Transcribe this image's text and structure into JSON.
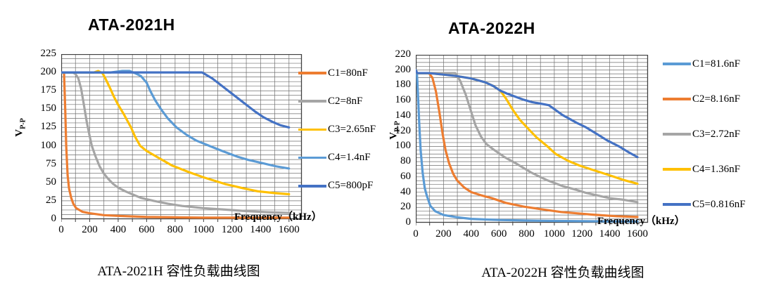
{
  "colors": {
    "orange": "#ED7D31",
    "gray": "#A5A5A5",
    "yellow": "#FFC000",
    "light_blue": "#5B9BD5",
    "dark_blue": "#4472C4",
    "grid": "#6F6F6F",
    "border": "#404040",
    "text": "#000000"
  },
  "charts": [
    {
      "title": "ATA-2021H",
      "caption": "ATA-2021H 容性负载曲线图",
      "y_label_main": "V",
      "y_label_sub": "P-P",
      "x_axis_label": "Frequency（kHz）",
      "chart_data": {
        "type": "line",
        "xlabel": "Frequency (kHz)",
        "ylabel": "Vp-p",
        "xlim": [
          0,
          1690
        ],
        "ylim": [
          0,
          225
        ],
        "x_tick_step": 200,
        "x_tick_max": 1600,
        "y_tick_step": 25,
        "x_minor_step": 100,
        "y_minor_step": 6.25,
        "grid": true,
        "legend_position": "right",
        "series": [
          {
            "name": "C1=80nF",
            "color": "#ED7D31",
            "points": [
              [
                0,
                200
              ],
              [
                20,
                200
              ],
              [
                28,
                150
              ],
              [
                35,
                100
              ],
              [
                45,
                60
              ],
              [
                55,
                42
              ],
              [
                70,
                29
              ],
              [
                85,
                21
              ],
              [
                105,
                15
              ],
              [
                150,
                10
              ],
              [
                200,
                8
              ],
              [
                300,
                5.5
              ],
              [
                400,
                4.5
              ],
              [
                600,
                3
              ],
              [
                800,
                2.5
              ],
              [
                1000,
                2
              ],
              [
                1300,
                2
              ],
              [
                1600,
                2
              ]
            ]
          },
          {
            "name": "C2=8nF",
            "color": "#A5A5A5",
            "points": [
              [
                0,
                200
              ],
              [
                80,
                200
              ],
              [
                100,
                198
              ],
              [
                120,
                192
              ],
              [
                140,
                178
              ],
              [
                160,
                155
              ],
              [
                180,
                132
              ],
              [
                200,
                113
              ],
              [
                215,
                100
              ],
              [
                240,
                86
              ],
              [
                270,
                72
              ],
              [
                300,
                62
              ],
              [
                330,
                55
              ],
              [
                365,
                48
              ],
              [
                400,
                43
              ],
              [
                450,
                38
              ],
              [
                510,
                33
              ],
              [
                560,
                29
              ],
              [
                650,
                25
              ],
              [
                750,
                21
              ],
              [
                850,
                18
              ],
              [
                1000,
                15
              ],
              [
                1150,
                13
              ],
              [
                1300,
                11
              ],
              [
                1450,
                9.5
              ],
              [
                1600,
                8.5
              ]
            ]
          },
          {
            "name": "C3=2.65nF",
            "color": "#FFC000",
            "points": [
              [
                0,
                200
              ],
              [
                230,
                200
              ],
              [
                260,
                202
              ],
              [
                290,
                199
              ],
              [
                310,
                192
              ],
              [
                340,
                180
              ],
              [
                370,
                167
              ],
              [
                400,
                156
              ],
              [
                440,
                143
              ],
              [
                490,
                125
              ],
              [
                520,
                112
              ],
              [
                555,
                100
              ],
              [
                600,
                93
              ],
              [
                680,
                84
              ],
              [
                780,
                73
              ],
              [
                900,
                64
              ],
              [
                1000,
                57
              ],
              [
                1150,
                48
              ],
              [
                1280,
                42
              ],
              [
                1380,
                38
              ],
              [
                1500,
                35.5
              ],
              [
                1600,
                34
              ]
            ]
          },
          {
            "name": "C4=1.4nF",
            "color": "#5B9BD5",
            "points": [
              [
                0,
                200
              ],
              [
                350,
                200
              ],
              [
                430,
                202
              ],
              [
                480,
                202
              ],
              [
                520,
                199
              ],
              [
                560,
                195
              ],
              [
                600,
                186
              ],
              [
                625,
                175
              ],
              [
                660,
                162
              ],
              [
                700,
                150
              ],
              [
                750,
                137
              ],
              [
                810,
                125
              ],
              [
                880,
                115
              ],
              [
                950,
                107
              ],
              [
                1040,
                100
              ],
              [
                1130,
                93
              ],
              [
                1240,
                85
              ],
              [
                1310,
                81
              ],
              [
                1420,
                76
              ],
              [
                1510,
                72
              ],
              [
                1600,
                69
              ]
            ]
          },
          {
            "name": "C5=800pF",
            "color": "#4472C4",
            "points": [
              [
                0,
                200
              ],
              [
                990,
                200
              ],
              [
                1060,
                192
              ],
              [
                1120,
                183
              ],
              [
                1180,
                174
              ],
              [
                1240,
                165
              ],
              [
                1300,
                156
              ],
              [
                1360,
                147
              ],
              [
                1420,
                139
              ],
              [
                1480,
                133
              ],
              [
                1540,
                128
              ],
              [
                1600,
                125
              ]
            ]
          }
        ]
      }
    },
    {
      "title": "ATA-2022H",
      "caption": "ATA-2022H 容性负载曲线图",
      "y_label_main": "V",
      "y_label_sub": "P-P",
      "x_axis_label": "Frequency（kHz）",
      "chart_data": {
        "type": "line",
        "xlabel": "Frequency (kHz)",
        "ylabel": "Vp-p",
        "xlim": [
          0,
          1676
        ],
        "ylim": [
          0,
          220
        ],
        "x_tick_step": 200,
        "x_tick_max": 1600,
        "y_tick_step": 20,
        "x_minor_step": 100,
        "y_minor_step": 5,
        "grid": true,
        "legend_position": "right",
        "series": [
          {
            "name": "C1=81.6nF",
            "color": "#5B9BD5",
            "points": [
              [
                0,
                200
              ],
              [
                8,
                196
              ],
              [
                15,
                170
              ],
              [
                25,
                130
              ],
              [
                35,
                95
              ],
              [
                50,
                65
              ],
              [
                65,
                45
              ],
              [
                80,
                35
              ],
              [
                105,
                22
              ],
              [
                140,
                15
              ],
              [
                200,
                10
              ],
              [
                300,
                7
              ],
              [
                400,
                5
              ],
              [
                600,
                3.5
              ],
              [
                800,
                2.8
              ],
              [
                1000,
                2.3
              ],
              [
                1300,
                1.8
              ],
              [
                1600,
                1.5
              ]
            ]
          },
          {
            "name": "C2=8.16nF",
            "color": "#ED7D31",
            "points": [
              [
                0,
                200
              ],
              [
                10,
                196
              ],
              [
                95,
                196
              ],
              [
                120,
                190
              ],
              [
                145,
                172
              ],
              [
                170,
                145
              ],
              [
                195,
                115
              ],
              [
                215,
                95
              ],
              [
                240,
                78
              ],
              [
                270,
                64
              ],
              [
                300,
                55
              ],
              [
                350,
                46
              ],
              [
                400,
                40
              ],
              [
                470,
                36
              ],
              [
                550,
                32
              ],
              [
                650,
                26
              ],
              [
                780,
                21
              ],
              [
                890,
                18
              ],
              [
                1050,
                14
              ],
              [
                1280,
                10.5
              ],
              [
                1450,
                8.5
              ],
              [
                1600,
                7.5
              ]
            ]
          },
          {
            "name": "C3=2.72nF",
            "color": "#A5A5A5",
            "points": [
              [
                0,
                200
              ],
              [
                10,
                196
              ],
              [
                285,
                196
              ],
              [
                320,
                186
              ],
              [
                360,
                168
              ],
              [
                395,
                148
              ],
              [
                430,
                128
              ],
              [
                470,
                113
              ],
              [
                510,
                103
              ],
              [
                560,
                96
              ],
              [
                640,
                86
              ],
              [
                720,
                78
              ],
              [
                830,
                66
              ],
              [
                944,
                56
              ],
              [
                1060,
                48
              ],
              [
                1160,
                43
              ],
              [
                1230,
                39
              ],
              [
                1400,
                32
              ],
              [
                1500,
                30
              ],
              [
                1600,
                27
              ]
            ]
          },
          {
            "name": "C4=1.36nF",
            "color": "#FFC000",
            "points": [
              [
                0,
                200
              ],
              [
                10,
                196
              ],
              [
                100,
                196
              ],
              [
                200,
                194
              ],
              [
                300,
                192
              ],
              [
                400,
                189
              ],
              [
                500,
                184
              ],
              [
                560,
                179
              ],
              [
                610,
                173
              ],
              [
                650,
                163
              ],
              [
                700,
                148
              ],
              [
                750,
                135
              ],
              [
                807,
                124
              ],
              [
                870,
                112
              ],
              [
                950,
                100
              ],
              [
                1010,
                90
              ],
              [
                1100,
                81
              ],
              [
                1180,
                75
              ],
              [
                1280,
                69
              ],
              [
                1400,
                62
              ],
              [
                1500,
                56
              ],
              [
                1600,
                51
              ]
            ]
          },
          {
            "name": "C5=0.816nF",
            "color": "#4472C4",
            "points": [
              [
                0,
                200
              ],
              [
                10,
                196
              ],
              [
                100,
                196
              ],
              [
                200,
                194
              ],
              [
                300,
                192
              ],
              [
                400,
                189
              ],
              [
                500,
                184
              ],
              [
                560,
                179
              ],
              [
                610,
                173
              ],
              [
                660,
                169
              ],
              [
                720,
                165
              ],
              [
                780,
                161
              ],
              [
                840,
                158
              ],
              [
                900,
                156
              ],
              [
                960,
                154
              ],
              [
                1060,
                141
              ],
              [
                1160,
                131
              ],
              [
                1228,
                125
              ],
              [
                1300,
                117
              ],
              [
                1380,
                108
              ],
              [
                1467,
                100
              ],
              [
                1540,
                92
              ],
              [
                1600,
                86
              ]
            ]
          }
        ]
      }
    }
  ]
}
